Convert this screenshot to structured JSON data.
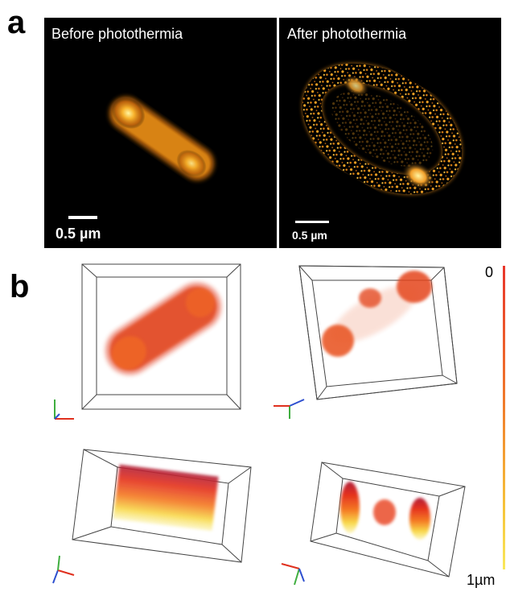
{
  "panel_labels": {
    "a": "a",
    "b": "b"
  },
  "panel_a": {
    "left": {
      "title": "Before photothermia",
      "scale_label": "0.5 µm"
    },
    "right": {
      "title": "After photothermia",
      "scale_label": "0.5 µm"
    }
  },
  "colorbar": {
    "top_label": "0",
    "bottom_label": "1µm",
    "gradient_colors": [
      "#e8352a",
      "#f07a2a",
      "#f6c43a",
      "#f9e85a"
    ]
  },
  "colors": {
    "fluorescence_core": "#fff6a0",
    "fluorescence_mid": "#f5a623",
    "fluorescence_edge": "#a34a08",
    "point_red": "#e0301e",
    "point_orange": "#f2751c",
    "point_yellow": "#f5e04a",
    "point_cyan": "#8fd6e0",
    "axis_x": "#e0301e",
    "axis_y": "#3fae3f",
    "axis_z": "#2d4fcf"
  }
}
